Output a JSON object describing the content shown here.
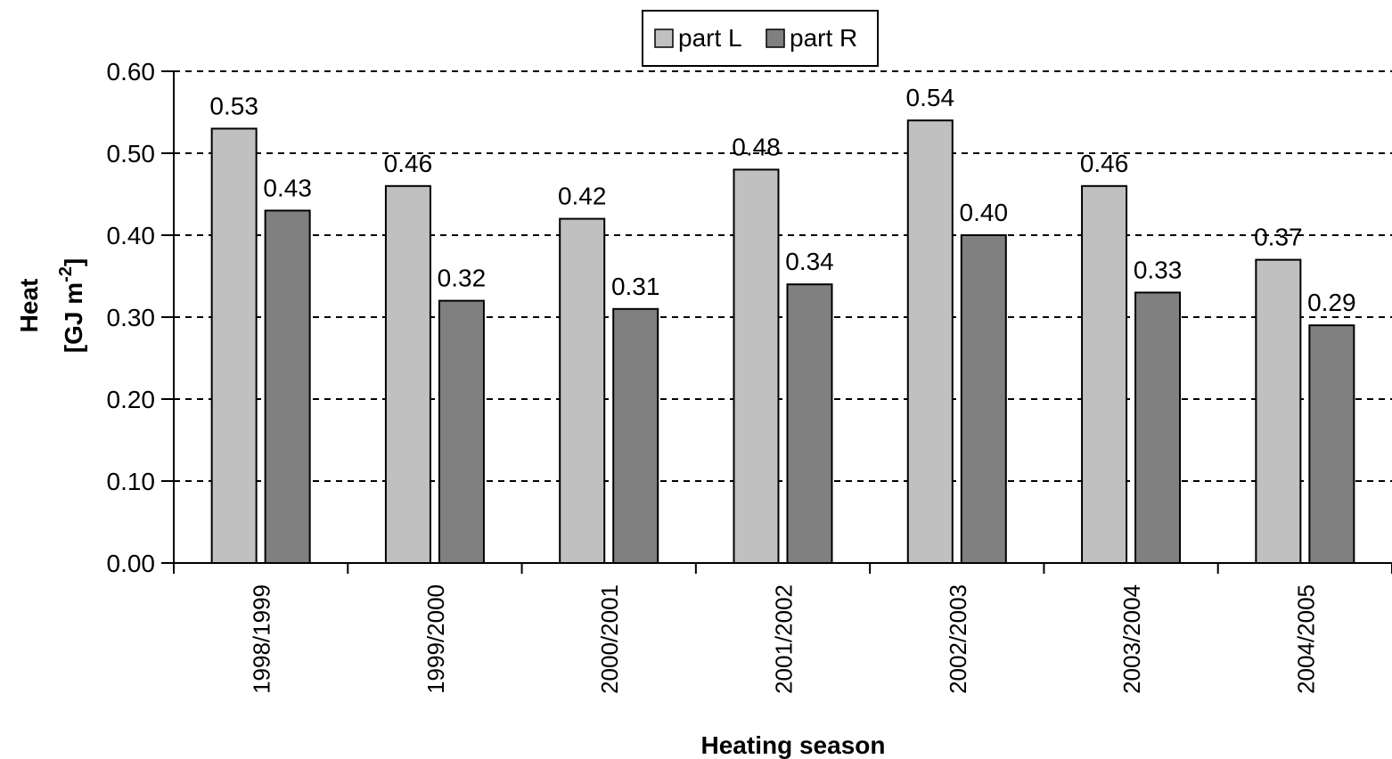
{
  "chart_data": {
    "type": "bar",
    "categories": [
      "1998/1999",
      "1999/2000",
      "2000/2001",
      "2001/2002",
      "2002/2003",
      "2003/2004",
      "2004/2005"
    ],
    "series": [
      {
        "name": "part L",
        "color": "#c0c0c0",
        "values": [
          0.53,
          0.46,
          0.42,
          0.48,
          0.54,
          0.46,
          0.37
        ],
        "labels": [
          "0.53",
          "0.46",
          "0.42",
          "0.48",
          "0.54",
          "0.46",
          "0.37"
        ]
      },
      {
        "name": "part R",
        "color": "#808080",
        "values": [
          0.43,
          0.32,
          0.31,
          0.34,
          0.4,
          0.33,
          0.29
        ],
        "labels": [
          "0.43",
          "0.32",
          "0.31",
          "0.34",
          "0.40",
          "0.33",
          "0.29"
        ]
      }
    ],
    "xlabel": "Heating season",
    "ylabel": "Heat",
    "ylabel_unit": "[GJ m",
    "ylabel_unit_exp": "-2",
    "ylabel_unit_close": "]",
    "ylim": [
      0,
      0.6
    ],
    "yticks": [
      "0.00",
      "0.10",
      "0.20",
      "0.30",
      "0.40",
      "0.50",
      "0.60"
    ],
    "grid": "dashed horizontal",
    "legend_position": "top"
  }
}
